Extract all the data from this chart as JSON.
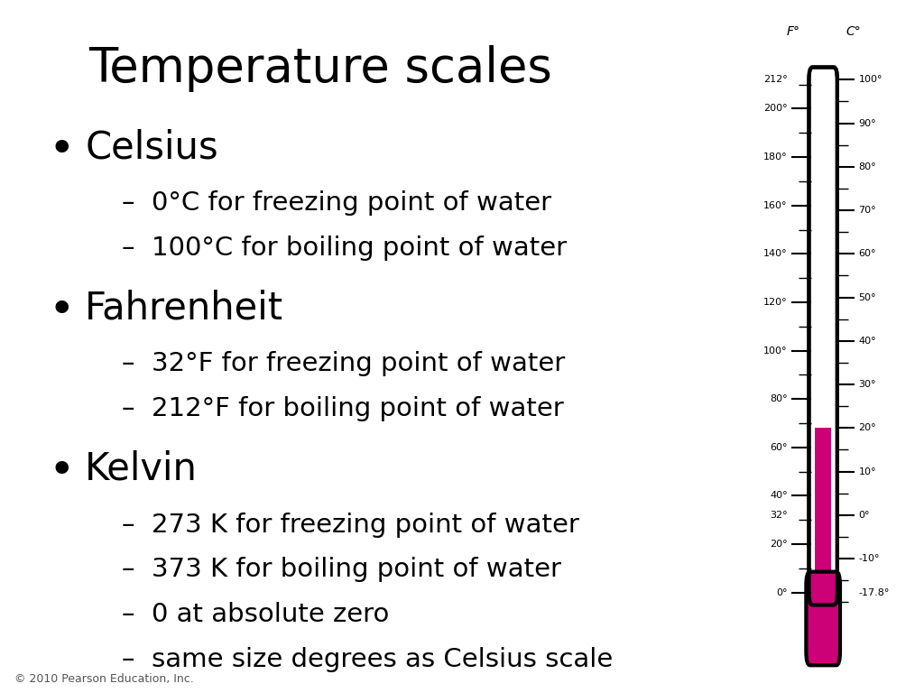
{
  "title": "Temperature scales",
  "background_color": "#ffffff",
  "text_color": "#000000",
  "bullet_items": [
    {
      "bullet": "Celsius",
      "sub": [
        "0°C for freezing point of water",
        "100°C for boiling point of water"
      ]
    },
    {
      "bullet": "Fahrenheit",
      "sub": [
        "32°F for freezing point of water",
        "212°F for boiling point of water"
      ]
    },
    {
      "bullet": "Kelvin",
      "sub": [
        "273 K for freezing point of water",
        "373 K for boiling point of water",
        "0 at absolute zero",
        "same size degrees as Celsius scale"
      ]
    }
  ],
  "footer": "© 2010 Pearson Education, Inc.",
  "thermometer": {
    "f_labels": [
      "212°",
      "200°",
      "180°",
      "160°",
      "140°",
      "120°",
      "100°",
      "80°",
      "60°",
      "40°",
      "32°",
      "20°",
      "0°"
    ],
    "f_values": [
      212,
      200,
      180,
      160,
      140,
      120,
      100,
      80,
      60,
      40,
      32,
      20,
      0
    ],
    "c_labels": [
      "100°",
      "90°",
      "80°",
      "70°",
      "60°",
      "50°",
      "40°",
      "30°",
      "20°",
      "10°",
      "0°",
      "-10°",
      "-17.8°"
    ],
    "c_values": [
      100,
      90,
      80,
      70,
      60,
      50,
      40,
      30,
      20,
      10,
      0,
      -10,
      -17.8
    ],
    "mercury_color": "#CC0077",
    "tube_color": "#000000",
    "bulb_color": "#CC0077",
    "f_header": "F°",
    "c_header": "C°",
    "f_min": -17.8,
    "f_max": 212,
    "mercury_level_f": 68
  }
}
